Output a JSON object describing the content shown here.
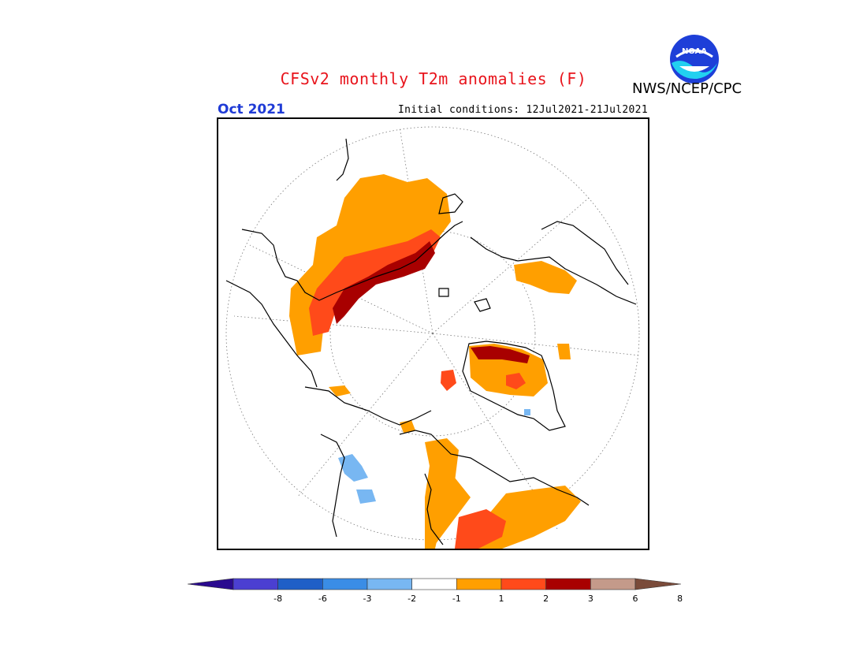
{
  "header": {
    "title": "CFSv2 monthly T2m anomalies (F)",
    "agency": "NWS/NCEP/CPC",
    "period": "Oct 2021",
    "initial_conditions": "Initial conditions: 12Jul2021-21Jul2021"
  },
  "logo": {
    "name": "noaa-logo",
    "text": "NOAA"
  },
  "map": {
    "projection": "north polar stereographic",
    "features": [
      "graticule",
      "coastlines",
      "anomaly-shading"
    ]
  },
  "colorbar": {
    "colors": [
      "#2a0a8f",
      "#4b3fd1",
      "#1f5fc7",
      "#3a8de6",
      "#78b7f2",
      "#ffffff",
      "#ff9f00",
      "#ff4a1a",
      "#a80000",
      "#c49a8a",
      "#7a4b3a"
    ],
    "tick_labels": [
      "-8",
      "-6",
      "-3",
      "-2",
      "-1",
      "1",
      "2",
      "3",
      "6",
      "8"
    ]
  }
}
